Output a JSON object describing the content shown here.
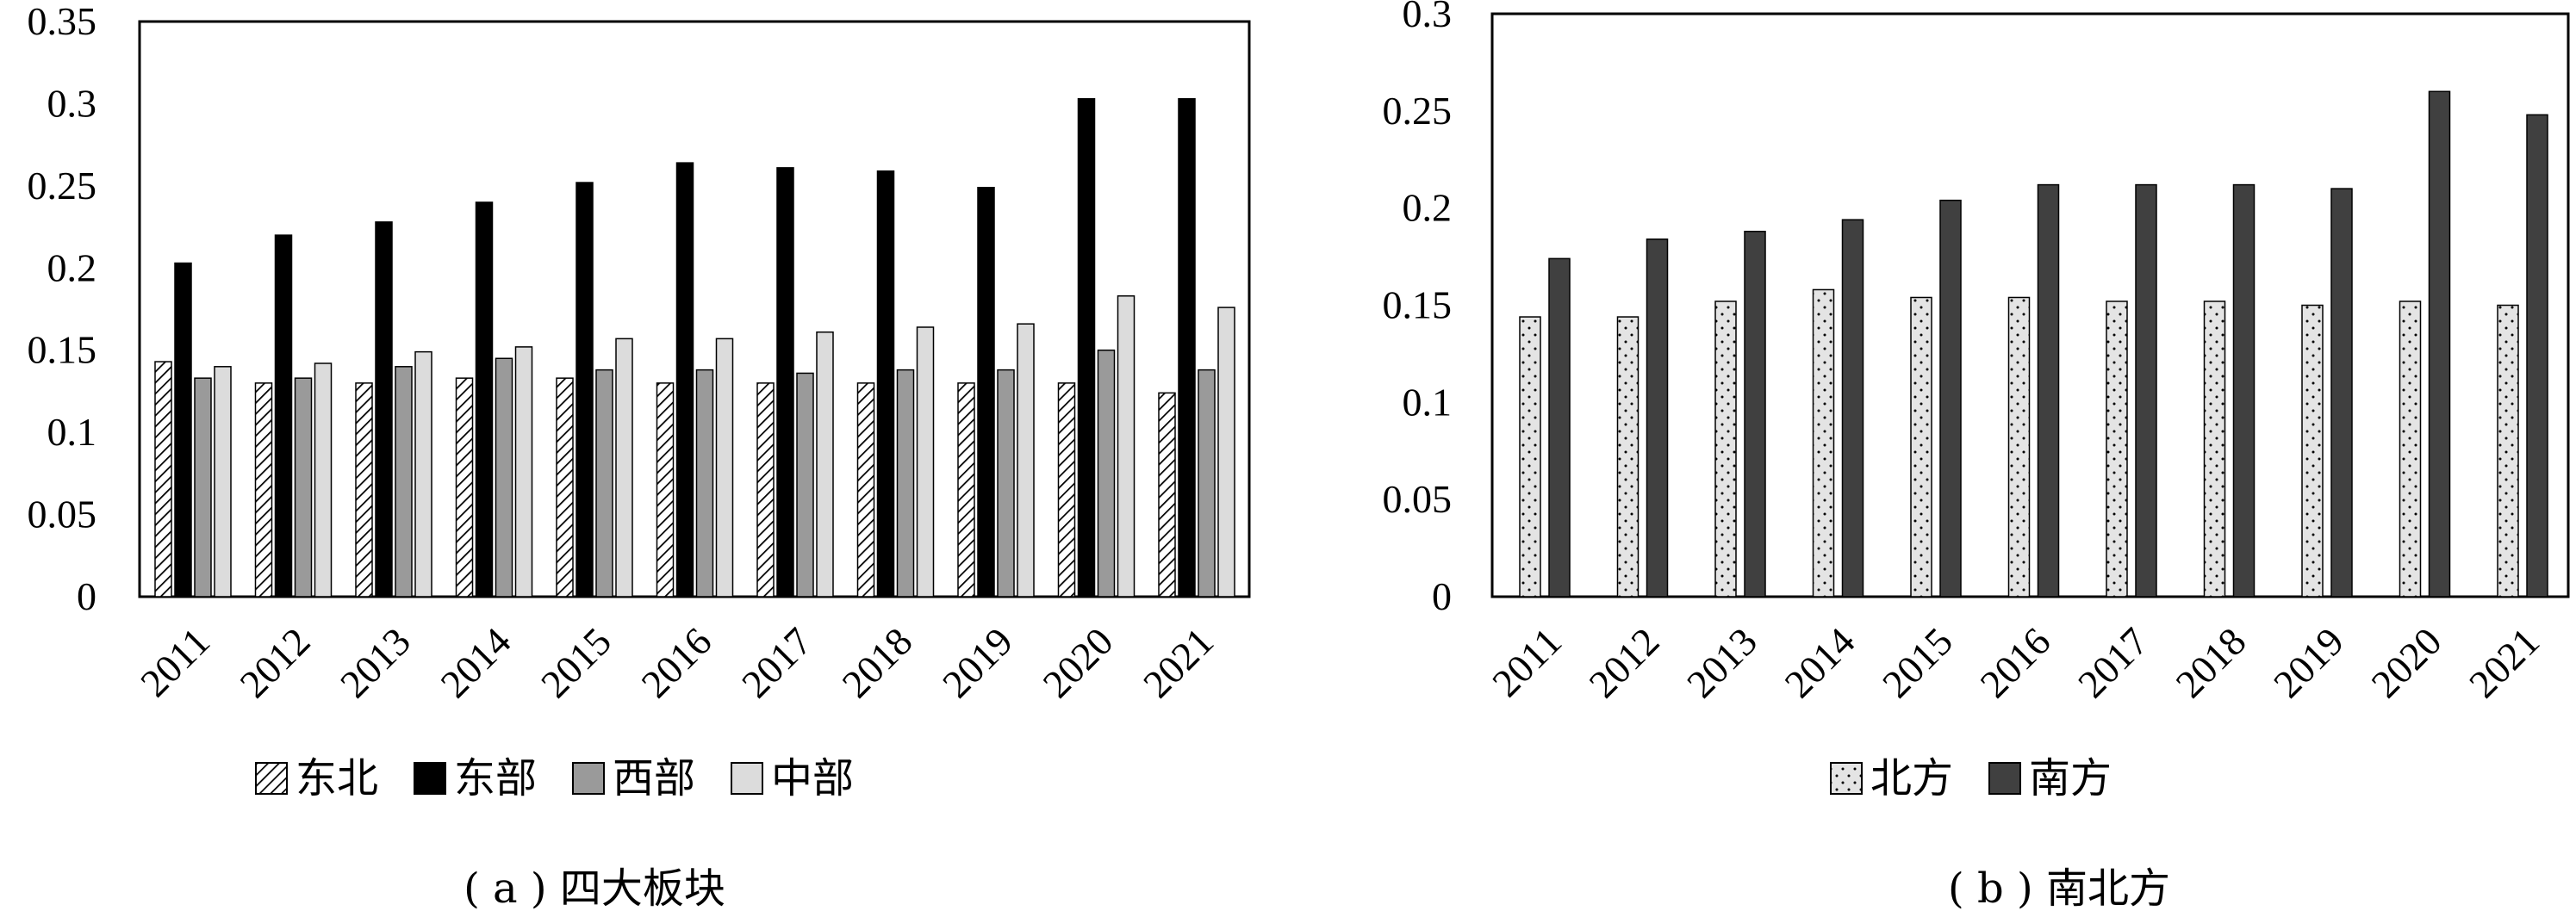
{
  "chart_data": [
    {
      "type": "bar",
      "title": "",
      "caption": "( a ) 四大板块",
      "xlabel": "",
      "ylabel": "",
      "ylim": [
        0,
        0.35
      ],
      "yticks": [
        "0",
        "0.05",
        "0.1",
        "0.15",
        "0.2",
        "0.25",
        "0.3",
        "0.35"
      ],
      "categories": [
        "2011",
        "2012",
        "2013",
        "2014",
        "2015",
        "2016",
        "2017",
        "2018",
        "2019",
        "2020",
        "2021"
      ],
      "series": [
        {
          "name": "东北",
          "color": "#ffffff",
          "pattern": "hatch",
          "values": [
            0.143,
            0.13,
            0.13,
            0.133,
            0.133,
            0.13,
            0.13,
            0.13,
            0.13,
            0.13,
            0.124
          ]
        },
        {
          "name": "东部",
          "color": "#000000",
          "values": [
            0.203,
            0.22,
            0.228,
            0.24,
            0.252,
            0.264,
            0.261,
            0.259,
            0.249,
            0.303,
            0.303
          ]
        },
        {
          "name": "西部",
          "color": "#9a9a9a",
          "values": [
            0.133,
            0.133,
            0.14,
            0.145,
            0.138,
            0.138,
            0.136,
            0.138,
            0.138,
            0.15,
            0.138
          ]
        },
        {
          "name": "中部",
          "color": "#dcdcdc",
          "values": [
            0.14,
            0.142,
            0.149,
            0.152,
            0.157,
            0.157,
            0.161,
            0.164,
            0.166,
            0.183,
            0.176
          ]
        }
      ],
      "legend": "bottom",
      "grid": false
    },
    {
      "type": "bar",
      "title": "",
      "caption": "( b ) 南北方",
      "xlabel": "",
      "ylabel": "",
      "ylim": [
        0,
        0.3
      ],
      "yticks": [
        "0",
        "0.05",
        "0.1",
        "0.15",
        "0.2",
        "0.25",
        "0.3"
      ],
      "categories": [
        "2011",
        "2012",
        "2013",
        "2014",
        "2015",
        "2016",
        "2017",
        "2018",
        "2019",
        "2020",
        "2021"
      ],
      "series": [
        {
          "name": "北方",
          "color": "#e4e4e4",
          "pattern": "dots",
          "values": [
            0.144,
            0.144,
            0.152,
            0.158,
            0.154,
            0.154,
            0.152,
            0.152,
            0.15,
            0.152,
            0.15
          ]
        },
        {
          "name": "南方",
          "color": "#404040",
          "values": [
            0.174,
            0.184,
            0.188,
            0.194,
            0.204,
            0.212,
            0.212,
            0.212,
            0.21,
            0.26,
            0.248
          ]
        }
      ],
      "legend": "bottom",
      "grid": false
    }
  ]
}
